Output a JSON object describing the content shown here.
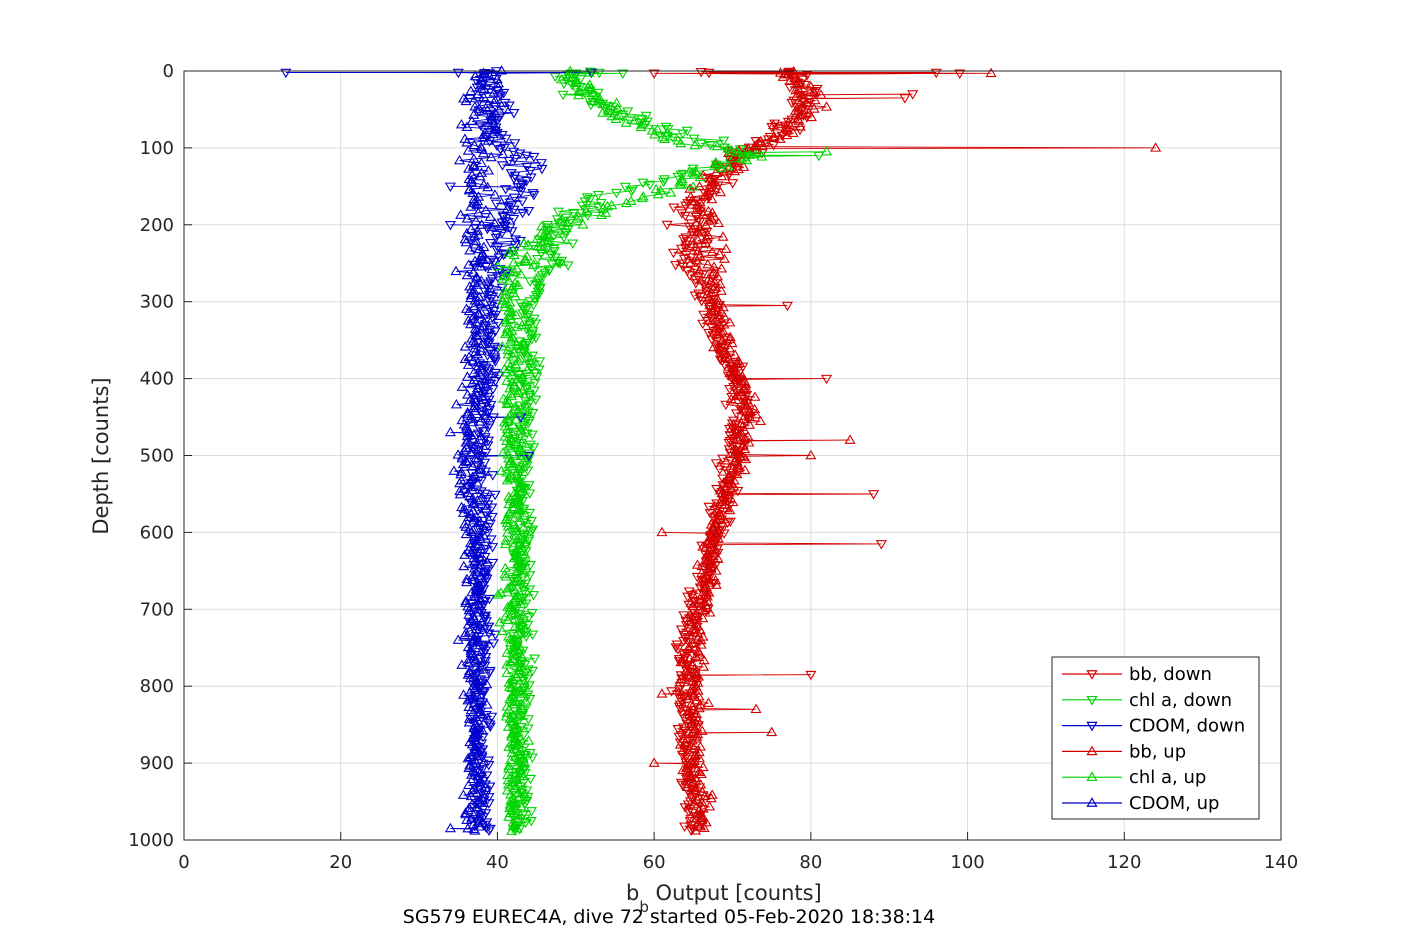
{
  "chart_data": {
    "type": "scatter",
    "title": "",
    "caption": "SG579 EUREC4A, dive 72 started 05-Feb-2020 18:38:14",
    "xlabel_main": "b",
    "xlabel_sub": "b",
    "xlabel_rest": " Output [counts]",
    "ylabel": "Depth [counts]",
    "xlim": [
      0,
      140
    ],
    "ylim": [
      0,
      1000
    ],
    "y_reversed": true,
    "xticks": [
      0,
      20,
      40,
      60,
      80,
      100,
      120,
      140
    ],
    "yticks": [
      0,
      100,
      200,
      300,
      400,
      500,
      600,
      700,
      800,
      900,
      1000
    ],
    "grid": true,
    "legend_position": "bottom-right",
    "series": [
      {
        "name": "bb, down",
        "color": "#d40000",
        "marker": "triangle-down",
        "profile": [
          [
            0,
            77
          ],
          [
            20,
            79
          ],
          [
            40,
            79
          ],
          [
            60,
            78
          ],
          [
            80,
            76
          ],
          [
            100,
            73
          ],
          [
            120,
            70
          ],
          [
            140,
            68
          ],
          [
            160,
            66
          ],
          [
            180,
            65
          ],
          [
            200,
            64
          ],
          [
            250,
            65
          ],
          [
            300,
            67
          ],
          [
            350,
            68
          ],
          [
            400,
            70
          ],
          [
            450,
            71
          ],
          [
            500,
            70
          ],
          [
            550,
            69
          ],
          [
            600,
            68
          ],
          [
            650,
            67
          ],
          [
            700,
            65
          ],
          [
            750,
            64
          ],
          [
            800,
            64
          ],
          [
            850,
            64
          ],
          [
            900,
            64
          ],
          [
            950,
            65
          ],
          [
            1000,
            65
          ]
        ],
        "outliers": [
          [
            2,
            96
          ],
          [
            3,
            99
          ],
          [
            3,
            60
          ],
          [
            2,
            67
          ],
          [
            35,
            92
          ],
          [
            30,
            93
          ],
          [
            305,
            77
          ],
          [
            400,
            82
          ],
          [
            550,
            88
          ],
          [
            615,
            89
          ],
          [
            785,
            80
          ],
          [
            1,
            66
          ]
        ]
      },
      {
        "name": "chl a, down",
        "color": "#00d400",
        "marker": "triangle-down",
        "profile": [
          [
            0,
            50
          ],
          [
            20,
            50
          ],
          [
            40,
            52
          ],
          [
            60,
            57
          ],
          [
            80,
            63
          ],
          [
            100,
            70
          ],
          [
            110,
            72
          ],
          [
            130,
            65
          ],
          [
            150,
            58
          ],
          [
            170,
            52
          ],
          [
            200,
            47
          ],
          [
            250,
            47
          ],
          [
            300,
            44
          ],
          [
            350,
            44
          ],
          [
            400,
            44
          ],
          [
            500,
            43
          ],
          [
            600,
            43
          ],
          [
            700,
            43
          ],
          [
            800,
            43
          ],
          [
            900,
            43
          ],
          [
            1000,
            43
          ]
        ],
        "outliers": [
          [
            3,
            56
          ],
          [
            2,
            53
          ],
          [
            250,
            48
          ],
          [
            110,
            81
          ]
        ]
      },
      {
        "name": "CDOM, down",
        "color": "#0000cc",
        "marker": "triangle-down",
        "profile": [
          [
            0,
            39
          ],
          [
            20,
            39
          ],
          [
            40,
            39
          ],
          [
            60,
            40
          ],
          [
            80,
            40
          ],
          [
            100,
            42
          ],
          [
            120,
            43
          ],
          [
            150,
            43
          ],
          [
            180,
            42
          ],
          [
            200,
            41
          ],
          [
            250,
            40
          ],
          [
            300,
            39
          ],
          [
            400,
            39
          ],
          [
            500,
            38
          ],
          [
            600,
            38
          ],
          [
            700,
            38
          ],
          [
            800,
            38
          ],
          [
            900,
            38
          ],
          [
            1000,
            38
          ]
        ],
        "outliers": [
          [
            2,
            13
          ],
          [
            2,
            35
          ],
          [
            2,
            52
          ],
          [
            150,
            34
          ],
          [
            200,
            34
          ],
          [
            450,
            43
          ],
          [
            500,
            44
          ]
        ]
      },
      {
        "name": "bb, up",
        "color": "#d40000",
        "marker": "triangle-up",
        "profile": [
          [
            0,
            77
          ],
          [
            20,
            78
          ],
          [
            40,
            80
          ],
          [
            60,
            79
          ],
          [
            80,
            77
          ],
          [
            100,
            72
          ],
          [
            120,
            70
          ],
          [
            150,
            67
          ],
          [
            180,
            66
          ],
          [
            200,
            66
          ],
          [
            250,
            67
          ],
          [
            300,
            68
          ],
          [
            350,
            69
          ],
          [
            400,
            71
          ],
          [
            450,
            72
          ],
          [
            500,
            71
          ],
          [
            550,
            69
          ],
          [
            600,
            68
          ],
          [
            650,
            67
          ],
          [
            700,
            66
          ],
          [
            750,
            65
          ],
          [
            800,
            65
          ],
          [
            850,
            65
          ],
          [
            900,
            65
          ],
          [
            950,
            66
          ],
          [
            1000,
            66
          ]
        ],
        "outliers": [
          [
            3,
            103
          ],
          [
            100,
            124
          ],
          [
            500,
            80
          ],
          [
            480,
            85
          ],
          [
            600,
            61
          ],
          [
            810,
            61
          ],
          [
            900,
            60
          ],
          [
            830,
            73
          ],
          [
            860,
            75
          ]
        ]
      },
      {
        "name": "chl a, up",
        "color": "#00d400",
        "marker": "triangle-up",
        "profile": [
          [
            0,
            50
          ],
          [
            30,
            51
          ],
          [
            60,
            55
          ],
          [
            90,
            63
          ],
          [
            110,
            73
          ],
          [
            130,
            67
          ],
          [
            160,
            60
          ],
          [
            190,
            50
          ],
          [
            210,
            46
          ],
          [
            230,
            44
          ],
          [
            260,
            42
          ],
          [
            300,
            42
          ],
          [
            400,
            42
          ],
          [
            500,
            42
          ],
          [
            600,
            42
          ],
          [
            700,
            42
          ],
          [
            800,
            42
          ],
          [
            900,
            42
          ],
          [
            1000,
            42
          ]
        ],
        "outliers": [
          [
            105,
            82
          ]
        ]
      },
      {
        "name": "CDOM, up",
        "color": "#0000cc",
        "marker": "triangle-up",
        "profile": [
          [
            0,
            39
          ],
          [
            30,
            38
          ],
          [
            60,
            37
          ],
          [
            90,
            38
          ],
          [
            120,
            38
          ],
          [
            160,
            38
          ],
          [
            200,
            38
          ],
          [
            250,
            37
          ],
          [
            300,
            37
          ],
          [
            400,
            37
          ],
          [
            500,
            36
          ],
          [
            600,
            37
          ],
          [
            700,
            37
          ],
          [
            800,
            37
          ],
          [
            900,
            37
          ],
          [
            1000,
            37
          ]
        ],
        "outliers": [
          [
            470,
            34
          ],
          [
            985,
            34
          ],
          [
            740,
            35
          ]
        ]
      }
    ]
  }
}
